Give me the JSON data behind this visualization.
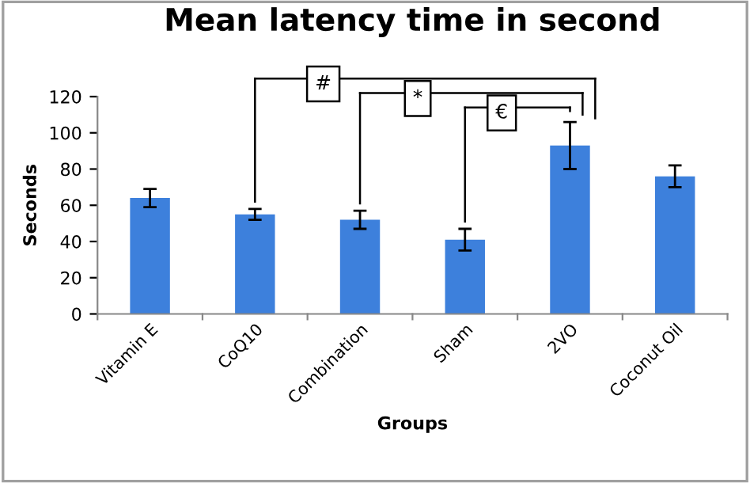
{
  "chart_data": {
    "type": "bar",
    "title": "Mean latency time in second",
    "xlabel": "Groups",
    "ylabel": "Seconds",
    "categories": [
      "Vitamin E",
      "CoQ10",
      "Combination",
      "Sham",
      "2VO",
      "Coconut Oil"
    ],
    "values": [
      64,
      55,
      52,
      41,
      93,
      76
    ],
    "errors": [
      5,
      3,
      5,
      6,
      13,
      6
    ],
    "color": "#3d80dc",
    "ylim": [
      0,
      120
    ],
    "yticks": [
      0,
      20,
      40,
      60,
      80,
      100,
      120
    ],
    "grid": false,
    "annotations": [
      "#",
      "*",
      "€"
    ]
  }
}
